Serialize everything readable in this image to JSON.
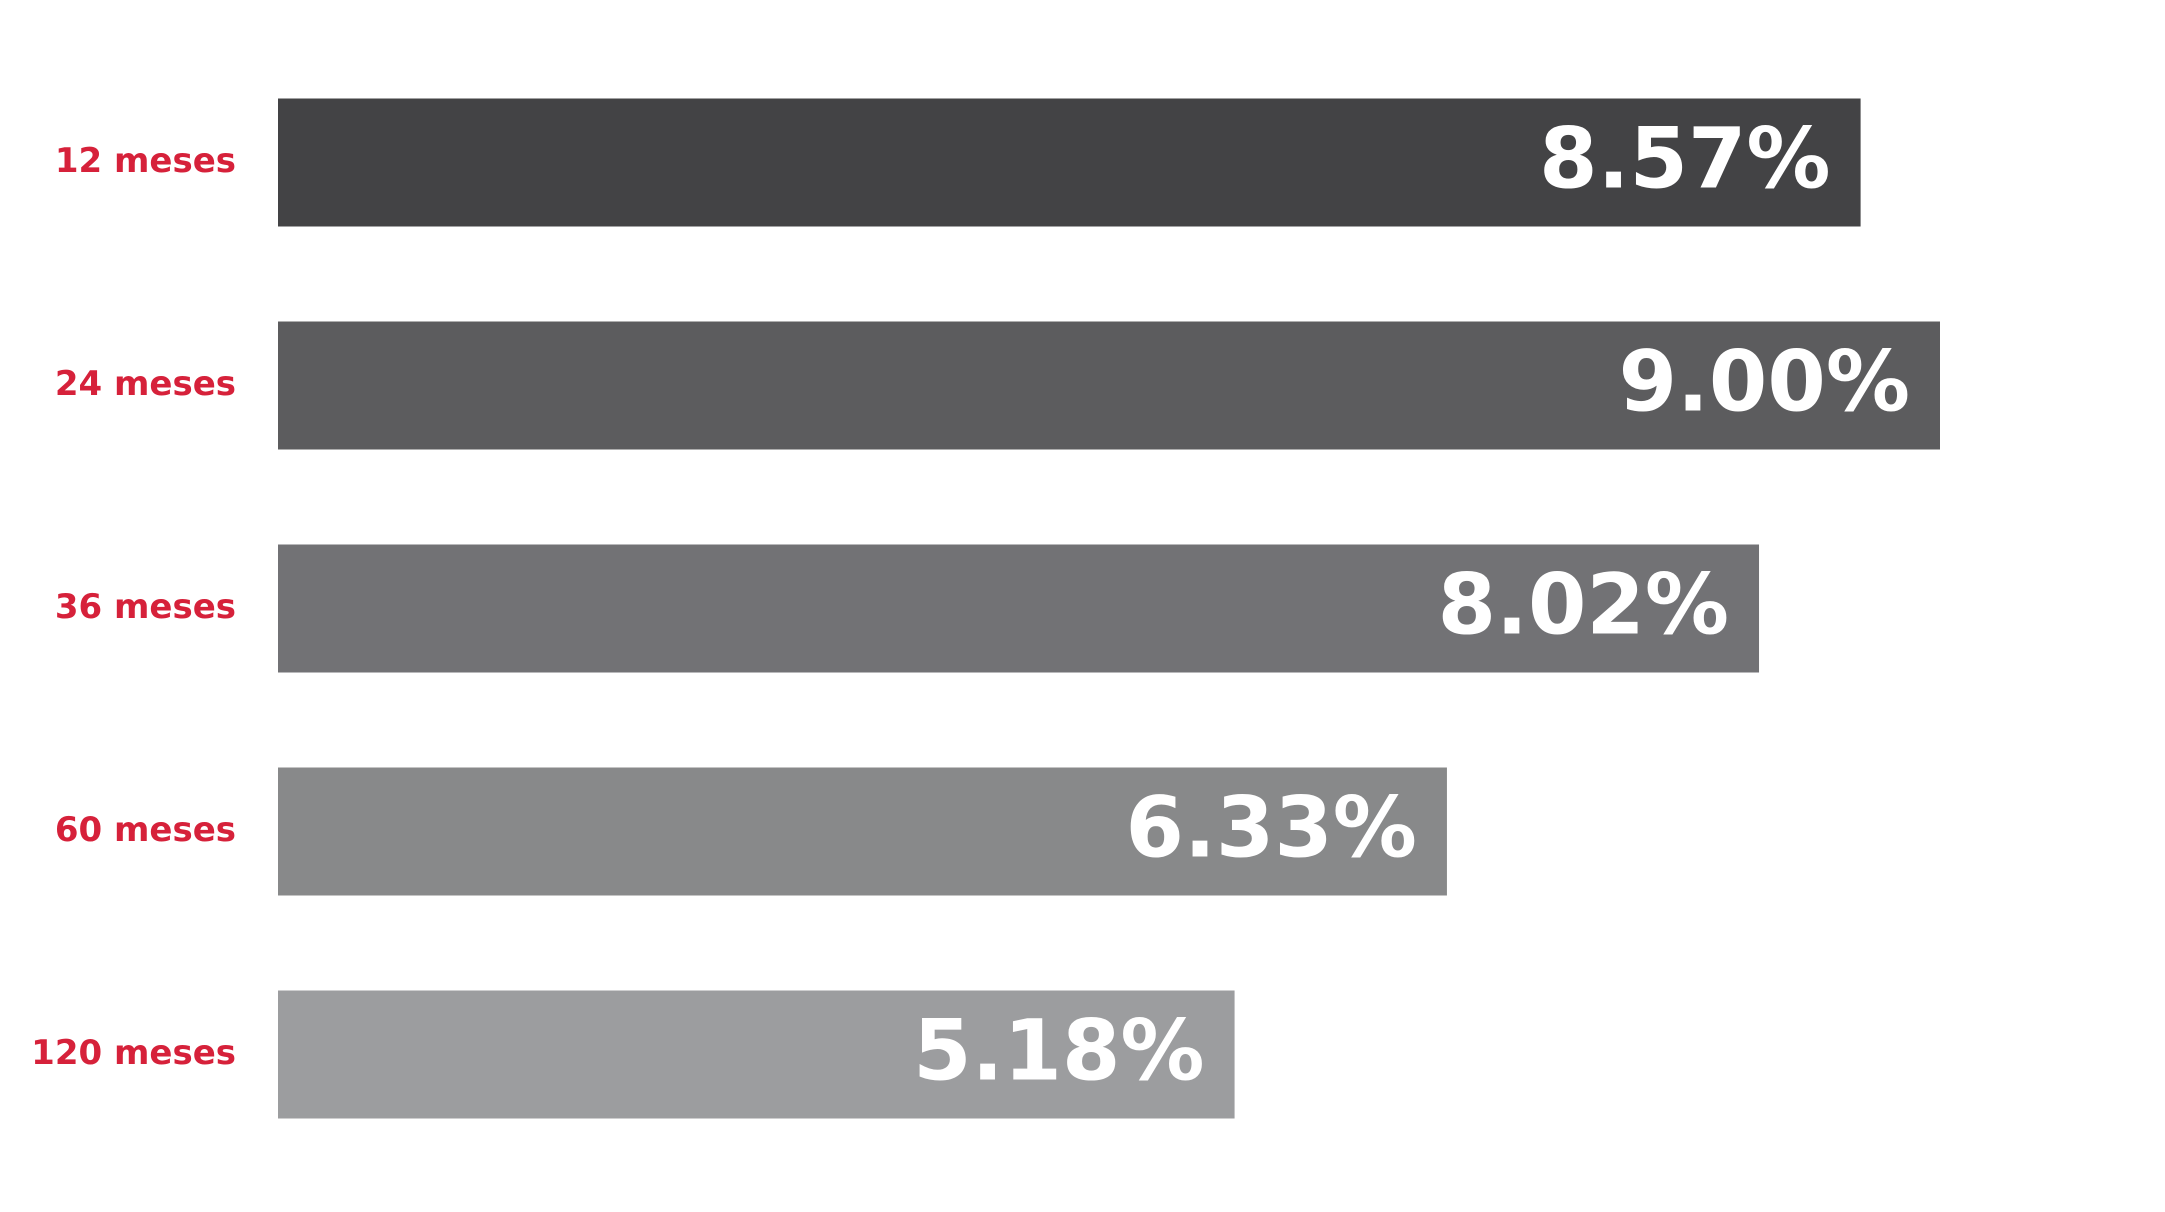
{
  "chart_data": {
    "type": "bar",
    "orientation": "horizontal",
    "categories": [
      "12 meses",
      "24 meses",
      "36 meses",
      "60 meses",
      "120 meses"
    ],
    "values": [
      8.57,
      9.0,
      8.02,
      6.33,
      5.18
    ],
    "value_labels": [
      "8.57%",
      "9.00%",
      "8.02%",
      "6.33%",
      "5.18%"
    ],
    "colors": [
      "#434345",
      "#5c5c5e",
      "#727275",
      "#88898a",
      "#9c9d9f"
    ]
  }
}
